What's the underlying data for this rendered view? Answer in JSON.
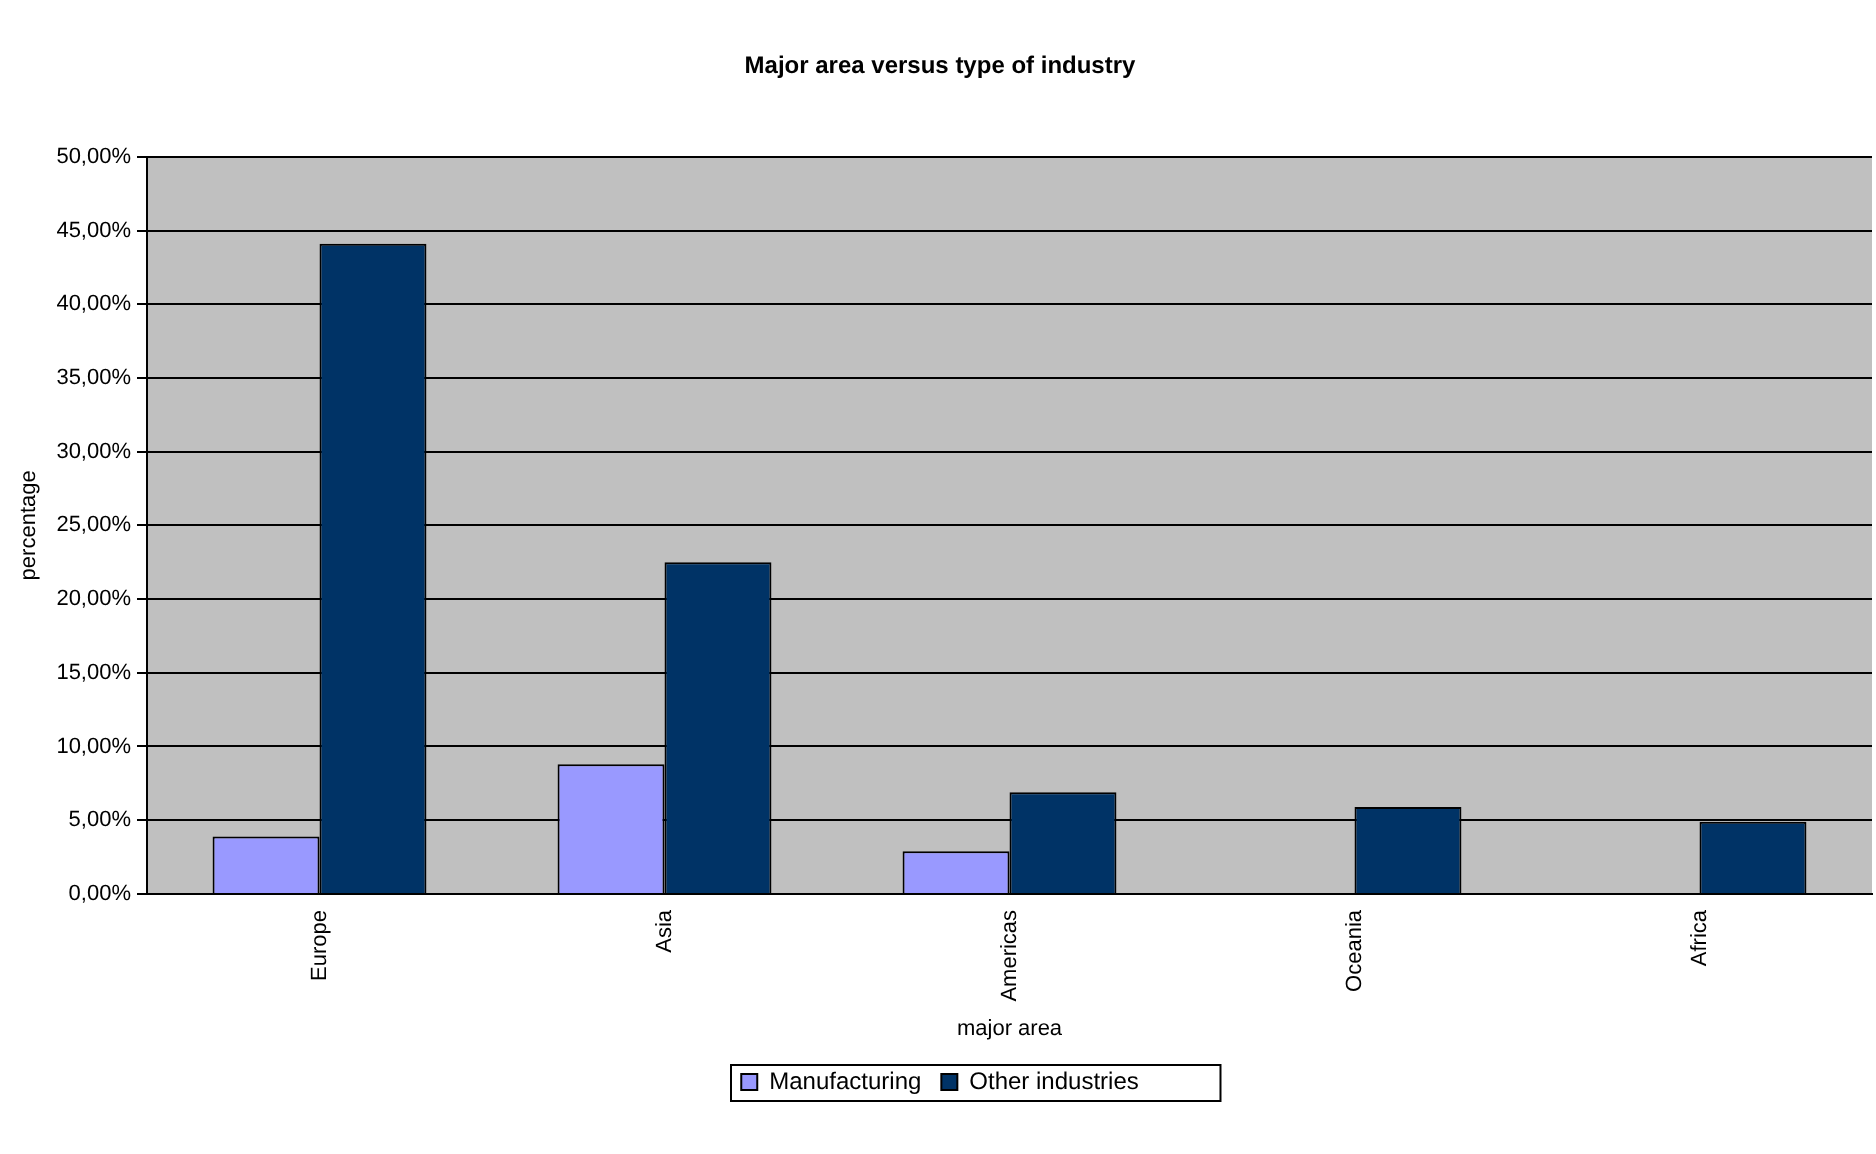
{
  "chart_data": {
    "type": "bar",
    "title": "Major area versus type of industry",
    "xlabel": "major area",
    "ylabel": "percentage",
    "categories": [
      "Europe",
      "Asia",
      "Americas",
      "Oceania",
      "Africa"
    ],
    "series": [
      {
        "name": "Manufacturing",
        "color": "#9999ff",
        "values": [
          3.9,
          8.8,
          2.9,
          0,
          0
        ]
      },
      {
        "name": "Other industries",
        "color": "#003366",
        "values": [
          44.1,
          22.5,
          6.9,
          5.9,
          4.9
        ]
      }
    ],
    "ylim": [
      0,
      50
    ],
    "yticks": [
      {
        "value": 0,
        "label": "0,00%"
      },
      {
        "value": 5,
        "label": "5,00%"
      },
      {
        "value": 10,
        "label": "10,00%"
      },
      {
        "value": 15,
        "label": "15,00%"
      },
      {
        "value": 20,
        "label": "20,00%"
      },
      {
        "value": 25,
        "label": "25,00%"
      },
      {
        "value": 30,
        "label": "30,00%"
      },
      {
        "value": 35,
        "label": "35,00%"
      },
      {
        "value": 40,
        "label": "40,00%"
      },
      {
        "value": 45,
        "label": "45,00%"
      },
      {
        "value": 50,
        "label": "50,00%"
      }
    ],
    "grid": "y",
    "legend": "bottom"
  }
}
